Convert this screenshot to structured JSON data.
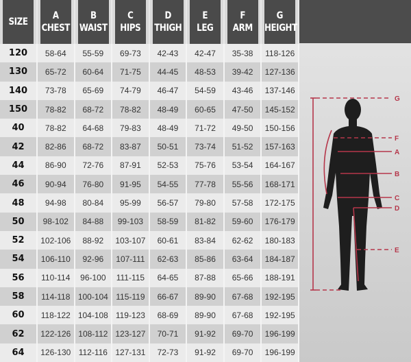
{
  "headers": [
    {
      "letter": "",
      "label": "SIZE"
    },
    {
      "letter": "A",
      "label": "CHEST"
    },
    {
      "letter": "B",
      "label": "WAIST"
    },
    {
      "letter": "C",
      "label": "HIPS"
    },
    {
      "letter": "D",
      "label": "THIGH"
    },
    {
      "letter": "E",
      "label": "LEG"
    },
    {
      "letter": "F",
      "label": "ARM"
    },
    {
      "letter": "G",
      "label": "HEIGHT"
    }
  ],
  "rows": [
    [
      "120",
      "58-64",
      "55-59",
      "69-73",
      "42-43",
      "42-47",
      "35-38",
      "118-126"
    ],
    [
      "130",
      "65-72",
      "60-64",
      "71-75",
      "44-45",
      "48-53",
      "39-42",
      "127-136"
    ],
    [
      "140",
      "73-78",
      "65-69",
      "74-79",
      "46-47",
      "54-59",
      "43-46",
      "137-146"
    ],
    [
      "150",
      "78-82",
      "68-72",
      "78-82",
      "48-49",
      "60-65",
      "47-50",
      "145-152"
    ],
    [
      "40",
      "78-82",
      "64-68",
      "79-83",
      "48-49",
      "71-72",
      "49-50",
      "150-156"
    ],
    [
      "42",
      "82-86",
      "68-72",
      "83-87",
      "50-51",
      "73-74",
      "51-52",
      "157-163"
    ],
    [
      "44",
      "86-90",
      "72-76",
      "87-91",
      "52-53",
      "75-76",
      "53-54",
      "164-167"
    ],
    [
      "46",
      "90-94",
      "76-80",
      "91-95",
      "54-55",
      "77-78",
      "55-56",
      "168-171"
    ],
    [
      "48",
      "94-98",
      "80-84",
      "95-99",
      "56-57",
      "79-80",
      "57-58",
      "172-175"
    ],
    [
      "50",
      "98-102",
      "84-88",
      "99-103",
      "58-59",
      "81-82",
      "59-60",
      "176-179"
    ],
    [
      "52",
      "102-106",
      "88-92",
      "103-107",
      "60-61",
      "83-84",
      "62-62",
      "180-183"
    ],
    [
      "54",
      "106-110",
      "92-96",
      "107-111",
      "62-63",
      "85-86",
      "63-64",
      "184-187"
    ],
    [
      "56",
      "110-114",
      "96-100",
      "111-115",
      "64-65",
      "87-88",
      "65-66",
      "188-191"
    ],
    [
      "58",
      "114-118",
      "100-104",
      "115-119",
      "66-67",
      "89-90",
      "67-68",
      "192-195"
    ],
    [
      "60",
      "118-122",
      "104-108",
      "119-123",
      "68-69",
      "89-90",
      "67-68",
      "192-195"
    ],
    [
      "62",
      "122-126",
      "108-112",
      "123-127",
      "70-71",
      "91-92",
      "69-70",
      "196-199"
    ],
    [
      "64",
      "126-130",
      "112-116",
      "127-131",
      "72-73",
      "91-92",
      "69-70",
      "196-199"
    ]
  ],
  "diagram": {
    "labels": [
      "G",
      "F",
      "A",
      "B",
      "C",
      "D",
      "E"
    ],
    "line_color": "#b5364a",
    "figure_color": "#1e1e1e"
  }
}
